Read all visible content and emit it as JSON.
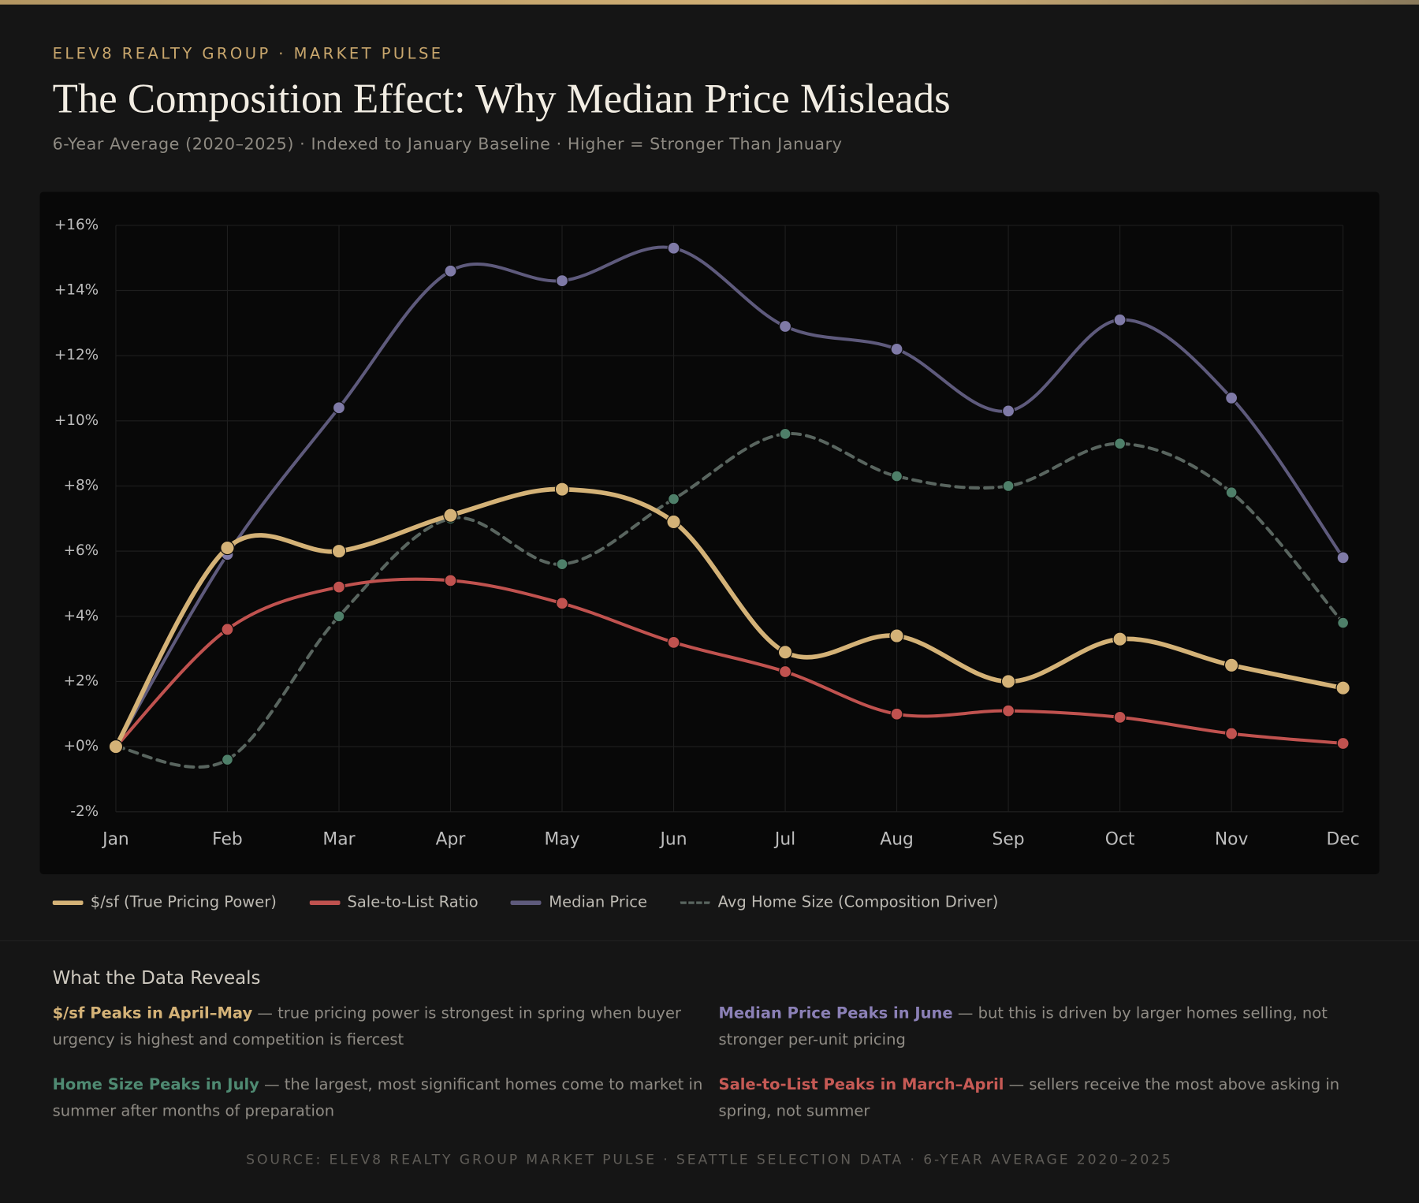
{
  "header": {
    "eyebrow": "ELEV8 REALTY GROUP · MARKET PULSE",
    "title": "The Composition Effect: Why Median Price Misleads",
    "subtitle": "6-Year Average (2020–2025) · Indexed to January Baseline · Higher = Stronger Than January"
  },
  "chart_data": {
    "type": "line",
    "categories": [
      "Jan",
      "Feb",
      "Mar",
      "Apr",
      "May",
      "Jun",
      "Jul",
      "Aug",
      "Sep",
      "Oct",
      "Nov",
      "Dec"
    ],
    "series": [
      {
        "name": "$/sf (True Pricing Power)",
        "color": "#d4b277",
        "values": [
          0,
          6.1,
          6.0,
          7.1,
          7.9,
          6.9,
          2.9,
          3.4,
          2.0,
          3.3,
          2.5,
          1.8
        ]
      },
      {
        "name": "Sale-to-List Ratio",
        "color": "#c0524f",
        "values": [
          0,
          3.6,
          4.9,
          5.1,
          4.4,
          3.2,
          2.3,
          1.0,
          1.1,
          0.9,
          0.4,
          0.1
        ]
      },
      {
        "name": "Median Price",
        "color": "#5e5a7c",
        "values": [
          0,
          5.9,
          10.4,
          14.6,
          14.3,
          15.3,
          12.9,
          12.2,
          10.3,
          13.1,
          10.7,
          5.8
        ]
      },
      {
        "name": "Avg Home Size (Composition Driver)",
        "color": "#4e7f69",
        "line_style": "dashed",
        "values": [
          0,
          -0.4,
          4.0,
          7.0,
          5.6,
          7.6,
          9.6,
          8.3,
          8.0,
          9.3,
          7.8,
          3.8
        ]
      }
    ],
    "ylim": [
      -2,
      16
    ],
    "yticks": [
      {
        "value": -2,
        "label": "-2%"
      },
      {
        "value": 0,
        "label": "+0%"
      },
      {
        "value": 2,
        "label": "+2%"
      },
      {
        "value": 4,
        "label": "+4%"
      },
      {
        "value": 6,
        "label": "+6%"
      },
      {
        "value": 8,
        "label": "+8%"
      },
      {
        "value": 10,
        "label": "+10%"
      },
      {
        "value": 12,
        "label": "+12%"
      },
      {
        "value": 14,
        "label": "+14%"
      },
      {
        "value": 16,
        "label": "+16%"
      }
    ],
    "grid": true
  },
  "insights": {
    "heading": "What the Data Reveals",
    "items": [
      {
        "title": "$/sf Peaks in April–May",
        "color": "#d4b277",
        "text": "— true pricing power is strongest in spring when buyer urgency is highest and competition is fiercest"
      },
      {
        "title": "Median Price Peaks in June",
        "color": "#8b80b6",
        "text": "— but this is driven by larger homes selling, not stronger per-unit pricing"
      },
      {
        "title": "Home Size Peaks in July",
        "color": "#4f8a72",
        "text": "— the largest, most significant homes come to market in summer after months of preparation"
      },
      {
        "title": "Sale-to-List Peaks in March–April",
        "color": "#c65a55",
        "text": "— sellers receive the most above asking in spring, not summer"
      }
    ]
  },
  "source": "SOURCE: ELEV8 REALTY GROUP MARKET PULSE · SEATTLE SELECTION DATA · 6-YEAR AVERAGE 2020–2025"
}
